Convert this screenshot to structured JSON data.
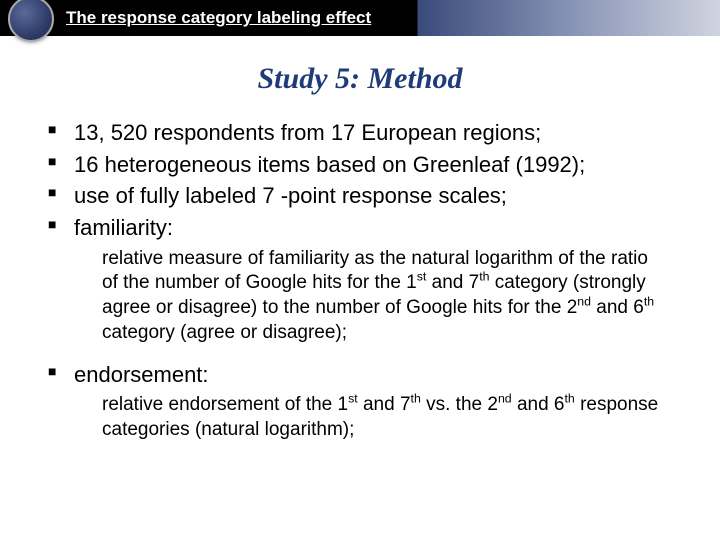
{
  "header": {
    "title": "The response category labeling effect"
  },
  "slide": {
    "title": "Study 5: Method"
  },
  "bullets": {
    "b1": "13, 520 respondents from 17 European regions;",
    "b2": "16 heterogeneous items based on Greenleaf (1992);",
    "b3": "use of fully labeled 7 -point response scales;",
    "b4": "familiarity:",
    "b5": "endorsement:"
  },
  "sub": {
    "s1_a": "relative measure of familiarity as the natural logarithm of the ratio of the number of Google hits for the 1",
    "s1_b": " and 7",
    "s1_c": " category (strongly agree or disagree) to the number of Google hits for the 2",
    "s1_d": " and 6",
    "s1_e": " category (agree or disagree);",
    "s2_a": "relative endorsement of the 1",
    "s2_b": " and 7",
    "s2_c": " vs. the 2",
    "s2_d": " and 6",
    "s2_e": " response categories (natural logarithm);"
  },
  "ord": {
    "st": "st",
    "nd": "nd",
    "th": "th"
  }
}
